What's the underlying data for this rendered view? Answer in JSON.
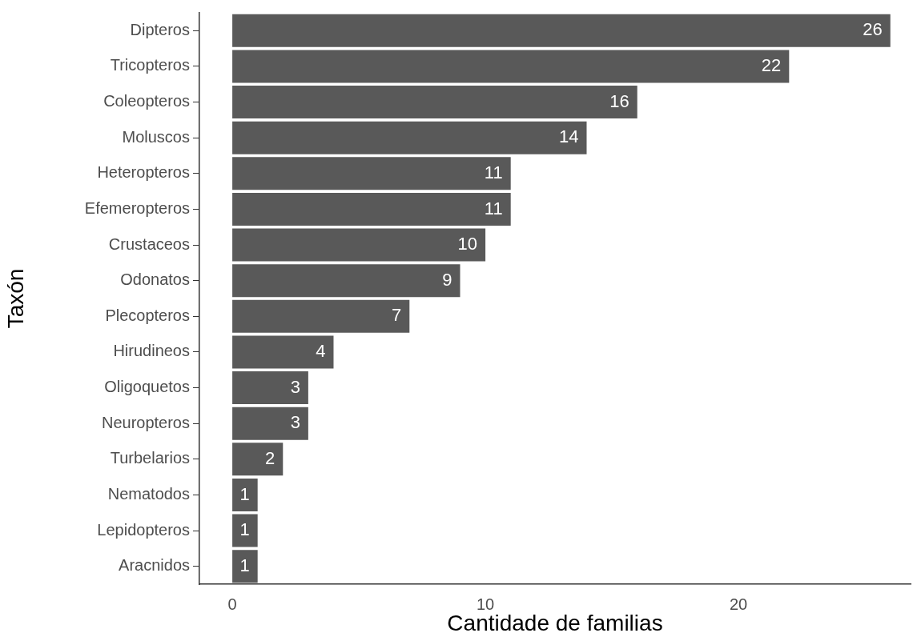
{
  "chart_data": {
    "type": "bar",
    "orientation": "horizontal",
    "xlabel": "Cantidade de familias",
    "ylabel": "Taxón",
    "categories": [
      "Dipteros",
      "Tricopteros",
      "Coleopteros",
      "Moluscos",
      "Heteropteros",
      "Efemeropteros",
      "Crustaceos",
      "Odonatos",
      "Plecopteros",
      "Hirudineos",
      "Oligoquetos",
      "Neuropteros",
      "Turbelarios",
      "Nematodos",
      "Lepidopteros",
      "Aracnidos"
    ],
    "values": [
      26,
      22,
      16,
      14,
      11,
      11,
      10,
      9,
      7,
      4,
      3,
      3,
      2,
      1,
      1,
      1
    ],
    "color": "#595959",
    "xlim": [
      -1.3,
      26.8
    ],
    "xticks": [
      0,
      10,
      20
    ],
    "data_labels": true
  }
}
